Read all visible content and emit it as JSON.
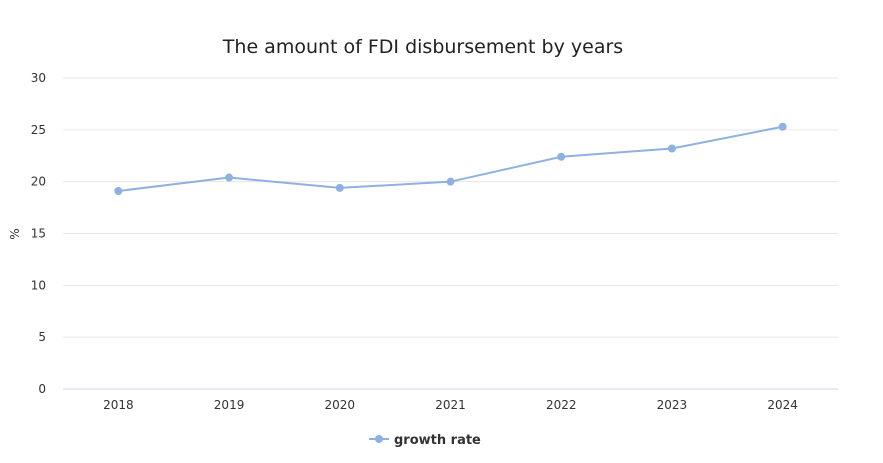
{
  "chart_data": {
    "type": "line",
    "title": "The amount of FDI disbursement by years",
    "xlabel": "",
    "ylabel": "%",
    "categories": [
      "2018",
      "2019",
      "2020",
      "2021",
      "2022",
      "2023",
      "2024"
    ],
    "series": [
      {
        "name": "growth rate",
        "values": [
          19.1,
          20.4,
          19.4,
          20.0,
          22.4,
          23.2,
          25.3
        ],
        "color": "#8eb1e1"
      }
    ],
    "ylim": [
      0,
      30
    ],
    "yticks": [
      "0",
      "5",
      "10",
      "15",
      "20",
      "25",
      "30"
    ],
    "grid": true,
    "legend_position": "bottom-center"
  }
}
